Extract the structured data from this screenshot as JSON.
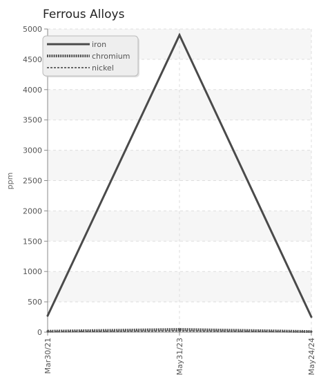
{
  "chart_data": {
    "type": "line",
    "title": "Ferrous Alloys",
    "xlabel": "",
    "ylabel": "ppm",
    "categories": [
      "Mar30/21",
      "May31/23",
      "May24/24"
    ],
    "ylim": [
      0,
      5000
    ],
    "yticks": [
      0,
      500,
      1000,
      1500,
      2000,
      2500,
      3000,
      3500,
      4000,
      4500,
      5000
    ],
    "grid": true,
    "legend_position": "top-left",
    "series": [
      {
        "name": "iron",
        "values": [
          270,
          4900,
          250
        ],
        "color": "#4a4a4a",
        "style": "solid"
      },
      {
        "name": "chromium",
        "values": [
          15,
          45,
          10
        ],
        "color": "#555555",
        "style": "dotted"
      },
      {
        "name": "nickel",
        "values": [
          8,
          20,
          5
        ],
        "color": "#666666",
        "style": "dashed"
      }
    ]
  }
}
